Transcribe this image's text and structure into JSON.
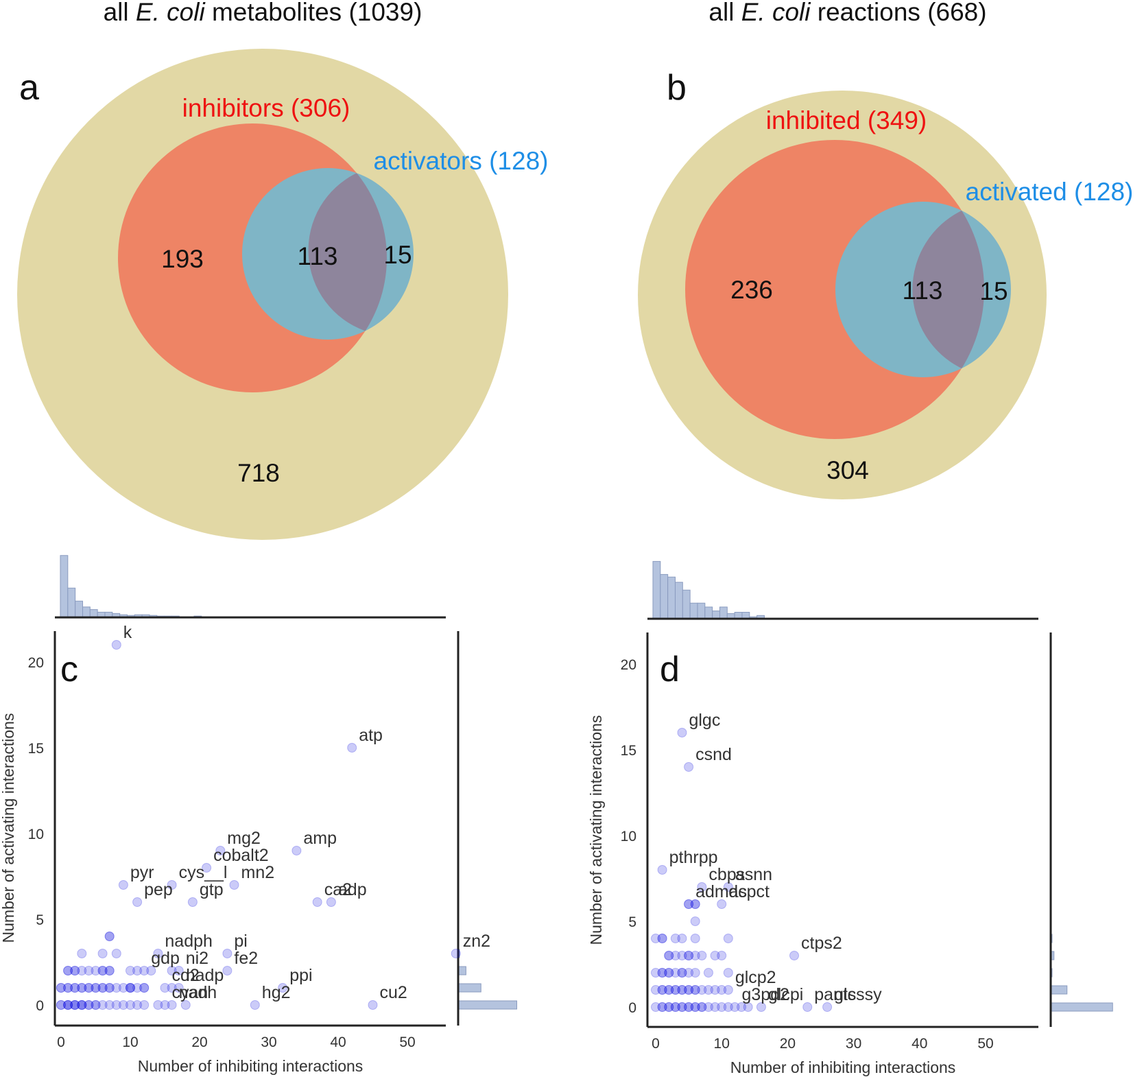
{
  "colors": {
    "all": "#e2d8a5",
    "inhibit": "#ee8465",
    "activate": "#7fb5c6",
    "overlap": "#8e859c",
    "inhibit_label": "#ee1111",
    "activate_label": "#1e8ee6",
    "hist": "#b4c3de",
    "hist_edge": "#8a9bbf",
    "scatter": "#1010e0"
  },
  "chart_data": [
    {
      "id": "a",
      "type": "venn",
      "panel_letter": "a",
      "title_prefix": "all ",
      "title_italic": "E. coli",
      "title_suffix": " metabolites (1039)",
      "set1_label": "inhibitors (306)",
      "set2_label": "activators (128)",
      "only_set1": "193",
      "both": "113",
      "only_set2": "15",
      "outside": "718"
    },
    {
      "id": "b",
      "type": "venn",
      "panel_letter": "b",
      "title_prefix": "all ",
      "title_italic": "E. coli",
      "title_suffix": " reactions (668)",
      "set1_label": "inhibited (349)",
      "set2_label": "activated (128)",
      "only_set1": "236",
      "both": "113",
      "only_set2": "15",
      "outside": "304"
    },
    {
      "id": "c",
      "type": "scatter",
      "panel_letter": "c",
      "xlabel": "Number of inhibiting interactions",
      "ylabel": "Number of activating interactions",
      "xlim": [
        -1,
        57
      ],
      "ylim": [
        -1,
        22
      ],
      "xticks": [
        0,
        10,
        20,
        30,
        40,
        50
      ],
      "yticks": [
        0,
        5,
        10,
        15,
        20
      ],
      "labeled_points": [
        {
          "label": "k",
          "x": 8,
          "y": 21
        },
        {
          "label": "atp",
          "x": 42,
          "y": 15
        },
        {
          "label": "mg2",
          "x": 23,
          "y": 9
        },
        {
          "label": "amp",
          "x": 34,
          "y": 9
        },
        {
          "label": "cobalt2",
          "x": 21,
          "y": 8
        },
        {
          "label": "pyr",
          "x": 9,
          "y": 7
        },
        {
          "label": "cys__l",
          "x": 16,
          "y": 7
        },
        {
          "label": "mn2",
          "x": 25,
          "y": 7
        },
        {
          "label": "adp",
          "x": 39,
          "y": 6
        },
        {
          "label": "pep",
          "x": 11,
          "y": 6
        },
        {
          "label": "gtp",
          "x": 19,
          "y": 6
        },
        {
          "label": "ca2",
          "x": 37,
          "y": 6
        },
        {
          "label": "zn2",
          "x": 57,
          "y": 3
        },
        {
          "label": "nadph",
          "x": 14,
          "y": 3
        },
        {
          "label": "pi",
          "x": 24,
          "y": 3
        },
        {
          "label": "gdp",
          "x": 12,
          "y": 2
        },
        {
          "label": "ni2",
          "x": 17,
          "y": 2
        },
        {
          "label": "fe2",
          "x": 24,
          "y": 2
        },
        {
          "label": "cd2",
          "x": 15,
          "y": 1
        },
        {
          "label": "nadp",
          "x": 17,
          "y": 1
        },
        {
          "label": "ppi",
          "x": 32,
          "y": 1
        },
        {
          "label": "cu2",
          "x": 45,
          "y": 0
        },
        {
          "label": "nadh",
          "x": 16,
          "y": 0
        },
        {
          "label": "cyan",
          "x": 15,
          "y": 0
        },
        {
          "label": "hg2",
          "x": 28,
          "y": 0
        }
      ],
      "points": [
        [
          0,
          0
        ],
        [
          1,
          0
        ],
        [
          2,
          0
        ],
        [
          3,
          0
        ],
        [
          4,
          0
        ],
        [
          5,
          0
        ],
        [
          6,
          0
        ],
        [
          7,
          0
        ],
        [
          0,
          0
        ],
        [
          1,
          0
        ],
        [
          2,
          0
        ],
        [
          3,
          0
        ],
        [
          4,
          0
        ],
        [
          5,
          0
        ],
        [
          1,
          0
        ],
        [
          2,
          0
        ],
        [
          3,
          0
        ],
        [
          0,
          1
        ],
        [
          1,
          1
        ],
        [
          2,
          1
        ],
        [
          3,
          1
        ],
        [
          4,
          1
        ],
        [
          5,
          1
        ],
        [
          6,
          1
        ],
        [
          7,
          1
        ],
        [
          8,
          1
        ],
        [
          10,
          1
        ],
        [
          0,
          1
        ],
        [
          1,
          1
        ],
        [
          2,
          1
        ],
        [
          3,
          1
        ],
        [
          4,
          1
        ],
        [
          5,
          1
        ],
        [
          6,
          1
        ],
        [
          7,
          1
        ],
        [
          9,
          1
        ],
        [
          10,
          1
        ],
        [
          12,
          1
        ],
        [
          1,
          2
        ],
        [
          2,
          2
        ],
        [
          3,
          2
        ],
        [
          4,
          2
        ],
        [
          5,
          2
        ],
        [
          6,
          2
        ],
        [
          7,
          2
        ],
        [
          10,
          2
        ],
        [
          11,
          2
        ],
        [
          13,
          2
        ],
        [
          16,
          2
        ],
        [
          1,
          2
        ],
        [
          2,
          2
        ],
        [
          6,
          2
        ],
        [
          7,
          2
        ],
        [
          3,
          3
        ],
        [
          6,
          3
        ],
        [
          8,
          3
        ],
        [
          7,
          4
        ],
        [
          7,
          4
        ],
        [
          10,
          0
        ],
        [
          11,
          0
        ],
        [
          12,
          0
        ],
        [
          14,
          0
        ],
        [
          18,
          0
        ],
        [
          8,
          0
        ],
        [
          9,
          0
        ],
        [
          10,
          1
        ],
        [
          11,
          1
        ],
        [
          12,
          1
        ],
        [
          16,
          1
        ]
      ],
      "hist_top": [
        0.95,
        0.45,
        0.25,
        0.16,
        0.12,
        0.08,
        0.08,
        0.06,
        0.04,
        0.03,
        0.04,
        0.04,
        0.03,
        0.02,
        0.02,
        0.02,
        0.01,
        0.01,
        0.02,
        0.01,
        0.01,
        0.01,
        0.01,
        0.0,
        0.0,
        0.0,
        0.0,
        0.0,
        0.01,
        0.0,
        0.0,
        0.0,
        0.0,
        0.0,
        0.0,
        0.0,
        0.0,
        0.0,
        0.0,
        0.0,
        0.0,
        0.0,
        0.0,
        0.0,
        0.0,
        0.0,
        0.0,
        0.0,
        0.0,
        0.0
      ],
      "hist_right": [
        {
          "y": 0,
          "v": 0.9
        },
        {
          "y": 1,
          "v": 0.35
        },
        {
          "y": 2,
          "v": 0.12
        },
        {
          "y": 3,
          "v": 0.02
        }
      ]
    },
    {
      "id": "d",
      "type": "scatter",
      "panel_letter": "d",
      "xlabel": "Number of inhibiting interactions",
      "ylabel": "Number of activating interactions",
      "xlim": [
        -1,
        57
      ],
      "ylim": [
        -1,
        22
      ],
      "xticks": [
        0,
        10,
        20,
        30,
        40,
        50
      ],
      "yticks": [
        0,
        5,
        10,
        15,
        20
      ],
      "labeled_points": [
        {
          "label": "glgc",
          "x": 4,
          "y": 16
        },
        {
          "label": "csnd",
          "x": 5,
          "y": 14
        },
        {
          "label": "pthrpp",
          "x": 1,
          "y": 8
        },
        {
          "label": "cbps",
          "x": 7,
          "y": 7
        },
        {
          "label": "asnn",
          "x": 11,
          "y": 7
        },
        {
          "label": "admas",
          "x": 5,
          "y": 6
        },
        {
          "label": "dcpct",
          "x": 10,
          "y": 6
        },
        {
          "label": "ctps2",
          "x": 21,
          "y": 3
        },
        {
          "label": "glcp2",
          "x": 11,
          "y": 1
        },
        {
          "label": "g3pd2",
          "x": 12,
          "y": 0
        },
        {
          "label": "glcpi",
          "x": 16,
          "y": 0
        },
        {
          "label": "pants",
          "x": 23,
          "y": 0
        },
        {
          "label": "glcssy",
          "x": 26,
          "y": 0
        }
      ],
      "points": [
        [
          0,
          0
        ],
        [
          1,
          0
        ],
        [
          2,
          0
        ],
        [
          3,
          0
        ],
        [
          4,
          0
        ],
        [
          5,
          0
        ],
        [
          6,
          0
        ],
        [
          7,
          0
        ],
        [
          8,
          0
        ],
        [
          9,
          0
        ],
        [
          10,
          0
        ],
        [
          1,
          0
        ],
        [
          2,
          0
        ],
        [
          3,
          0
        ],
        [
          4,
          0
        ],
        [
          5,
          0
        ],
        [
          6,
          0
        ],
        [
          7,
          0
        ],
        [
          11,
          0
        ],
        [
          13,
          0
        ],
        [
          14,
          0
        ],
        [
          0,
          1
        ],
        [
          1,
          1
        ],
        [
          2,
          1
        ],
        [
          3,
          1
        ],
        [
          4,
          1
        ],
        [
          5,
          1
        ],
        [
          6,
          1
        ],
        [
          7,
          1
        ],
        [
          8,
          1
        ],
        [
          9,
          1
        ],
        [
          10,
          1
        ],
        [
          1,
          1
        ],
        [
          2,
          1
        ],
        [
          3,
          1
        ],
        [
          4,
          1
        ],
        [
          5,
          1
        ],
        [
          6,
          1
        ],
        [
          0,
          2
        ],
        [
          1,
          2
        ],
        [
          2,
          2
        ],
        [
          3,
          2
        ],
        [
          4,
          2
        ],
        [
          5,
          2
        ],
        [
          6,
          2
        ],
        [
          8,
          2
        ],
        [
          1,
          2
        ],
        [
          2,
          2
        ],
        [
          4,
          2
        ],
        [
          11,
          2
        ],
        [
          2,
          3
        ],
        [
          3,
          3
        ],
        [
          4,
          3
        ],
        [
          5,
          3
        ],
        [
          6,
          3
        ],
        [
          7,
          3
        ],
        [
          9,
          3
        ],
        [
          10,
          3
        ],
        [
          2,
          3
        ],
        [
          5,
          3
        ],
        [
          0,
          4
        ],
        [
          1,
          4
        ],
        [
          3,
          4
        ],
        [
          4,
          4
        ],
        [
          6,
          4
        ],
        [
          11,
          4
        ],
        [
          1,
          4
        ],
        [
          6,
          5
        ],
        [
          5,
          6
        ],
        [
          6,
          6
        ],
        [
          6,
          6
        ]
      ],
      "hist_top": [
        0.88,
        0.68,
        0.64,
        0.56,
        0.44,
        0.24,
        0.24,
        0.18,
        0.12,
        0.18,
        0.08,
        0.1,
        0.1,
        0.03,
        0.05,
        0.0,
        0.0,
        0.0,
        0.0,
        0.0,
        0.0,
        0.0,
        0.0,
        0.0,
        0.0,
        0.0,
        0.0,
        0.0,
        0.0,
        0.0,
        0.0,
        0.0,
        0.0,
        0.0,
        0.0,
        0.0,
        0.0,
        0.0,
        0.0,
        0.0,
        0.0,
        0.0,
        0.0,
        0.0,
        0.0,
        0.0,
        0.0,
        0.0,
        0.0,
        0.0
      ],
      "hist_right": [
        {
          "y": 0,
          "v": 0.95
        },
        {
          "y": 1,
          "v": 0.25
        },
        {
          "y": 2,
          "v": 0.02
        },
        {
          "y": 3,
          "v": 0.05
        },
        {
          "y": 4,
          "v": 0.02
        }
      ]
    }
  ]
}
